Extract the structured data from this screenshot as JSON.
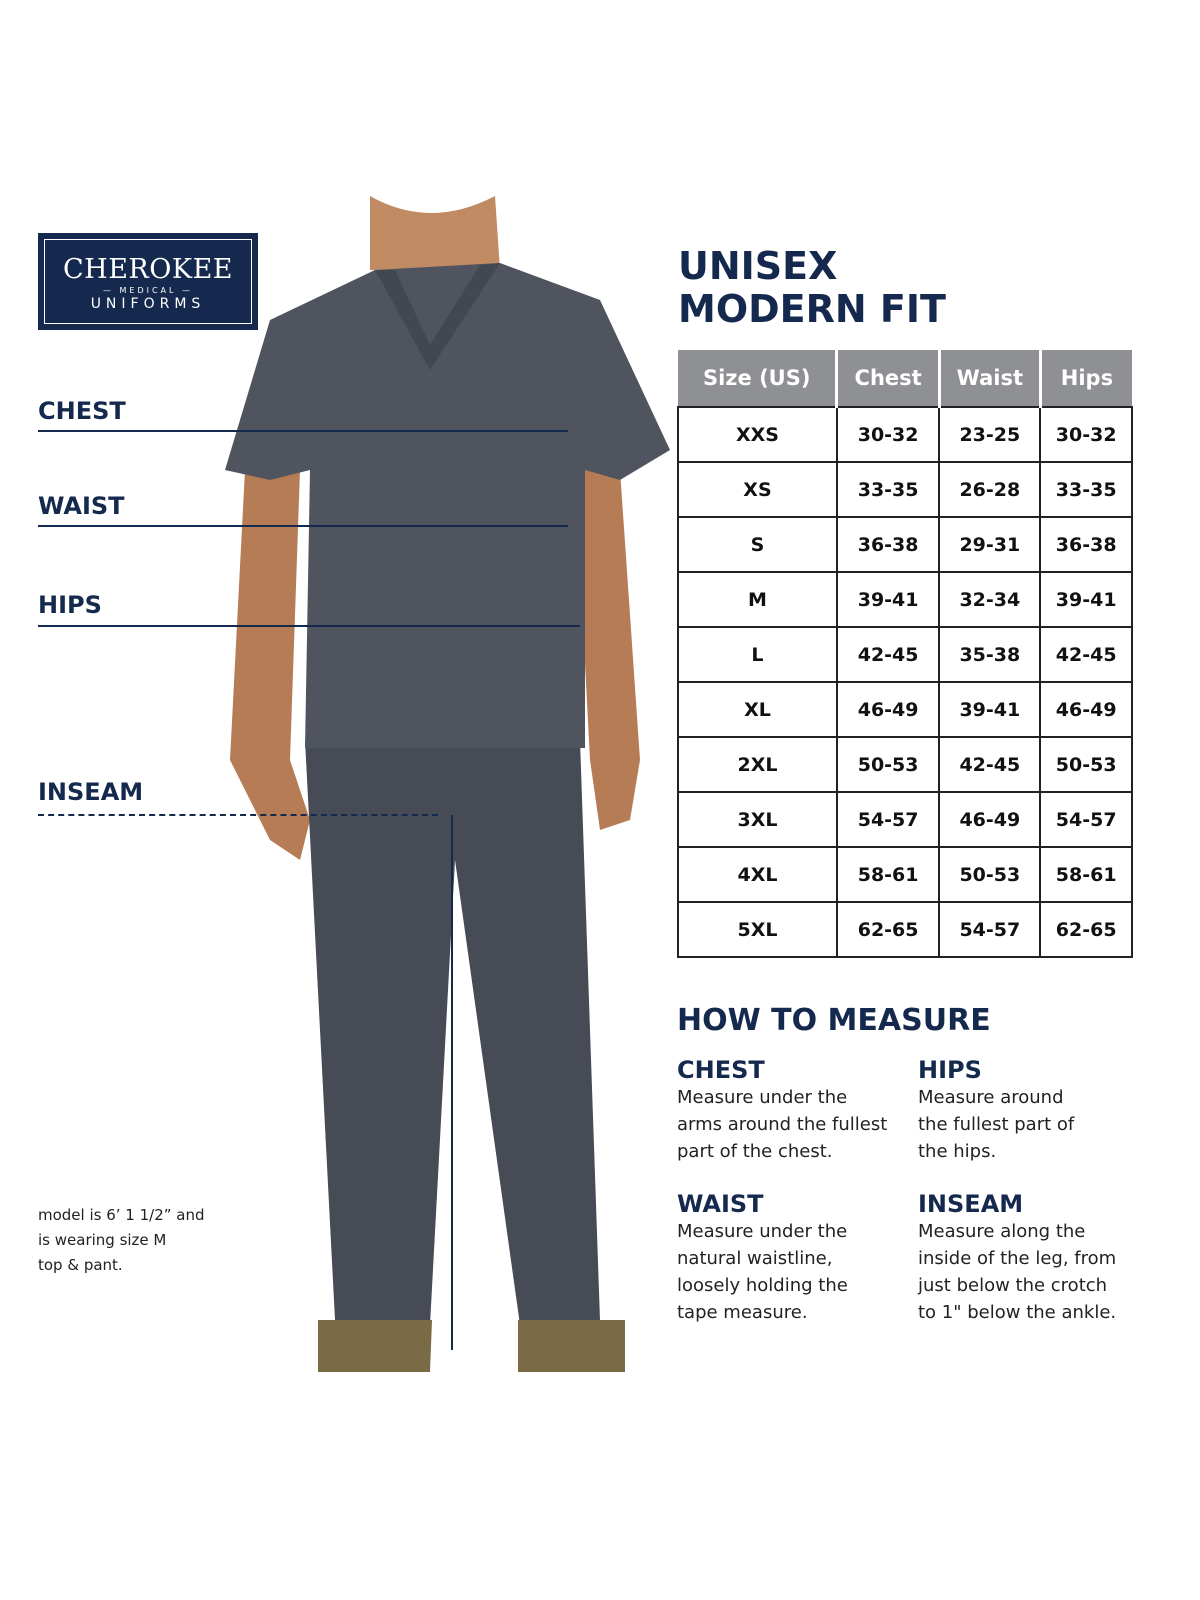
{
  "logo": {
    "brand": "CHEROKEE",
    "sub": "— MEDICAL —",
    "sub2": "UNIFORMS"
  },
  "measure_labels": [
    "CHEST",
    "WAIST",
    "HIPS",
    "INSEAM"
  ],
  "model_note": [
    "model is 6’ 1 1/2” and",
    "is wearing size M",
    "top & pant."
  ],
  "title": [
    "UNISEX",
    "MODERN FIT"
  ],
  "colors": {
    "navy": "#14294d",
    "header_gray": "#8f9093",
    "garment": "#4b4f58"
  },
  "table": {
    "headers": [
      "Size (US)",
      "Chest",
      "Waist",
      "Hips"
    ],
    "rows": [
      [
        "XXS",
        "30-32",
        "23-25",
        "30-32"
      ],
      [
        "XS",
        "33-35",
        "26-28",
        "33-35"
      ],
      [
        "S",
        "36-38",
        "29-31",
        "36-38"
      ],
      [
        "M",
        "39-41",
        "32-34",
        "39-41"
      ],
      [
        "L",
        "42-45",
        "35-38",
        "42-45"
      ],
      [
        "XL",
        "46-49",
        "39-41",
        "46-49"
      ],
      [
        "2XL",
        "50-53",
        "42-45",
        "50-53"
      ],
      [
        "3XL",
        "54-57",
        "46-49",
        "54-57"
      ],
      [
        "4XL",
        "58-61",
        "50-53",
        "58-61"
      ],
      [
        "5XL",
        "62-65",
        "54-57",
        "62-65"
      ]
    ]
  },
  "how_to": {
    "title": "HOW TO MEASURE",
    "sections": [
      {
        "heading": "CHEST",
        "lines": [
          "Measure under the",
          "arms around the fullest",
          "part of the chest."
        ]
      },
      {
        "heading": "HIPS",
        "lines": [
          "Measure around",
          "the fullest part of",
          "the hips."
        ]
      },
      {
        "heading": "WAIST",
        "lines": [
          "Measure under the",
          "natural waistline,",
          "loosely holding the",
          "tape measure."
        ]
      },
      {
        "heading": "INSEAM",
        "lines": [
          "Measure along the",
          "inside of the leg, from",
          "just below the crotch",
          "to 1\" below the ankle."
        ]
      }
    ]
  }
}
